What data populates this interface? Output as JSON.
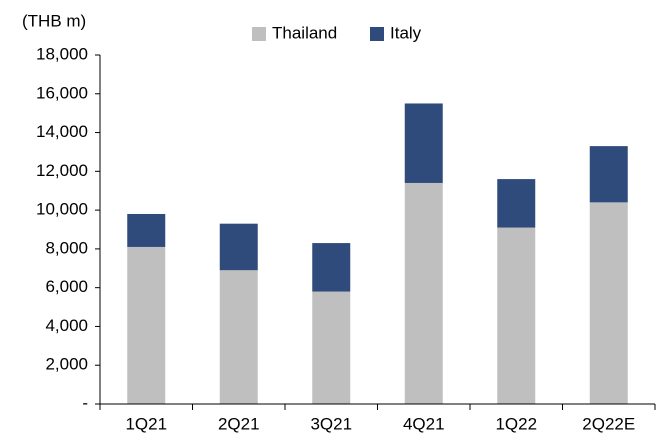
{
  "chart_data": {
    "type": "stacked_bar",
    "y_unit_label": "(THB m)",
    "categories": [
      "1Q21",
      "2Q21",
      "3Q21",
      "4Q21",
      "1Q22",
      "2Q22E"
    ],
    "series": [
      {
        "name": "Thailand",
        "color": "#bfbfbf",
        "values": [
          8100,
          6900,
          5800,
          11400,
          9100,
          10400
        ]
      },
      {
        "name": "Italy",
        "color": "#2f4b7c",
        "values": [
          1700,
          2400,
          2500,
          4100,
          2500,
          2900
        ]
      }
    ],
    "ylim": [
      0,
      18000
    ],
    "yticks": [
      {
        "value": 0,
        "label": "-"
      },
      {
        "value": 2000,
        "label": "2,000"
      },
      {
        "value": 4000,
        "label": "4,000"
      },
      {
        "value": 6000,
        "label": "6,000"
      },
      {
        "value": 8000,
        "label": "8,000"
      },
      {
        "value": 10000,
        "label": "10,000"
      },
      {
        "value": 12000,
        "label": "12,000"
      },
      {
        "value": 14000,
        "label": "14,000"
      },
      {
        "value": 16000,
        "label": "16,000"
      },
      {
        "value": 18000,
        "label": "18,000"
      }
    ],
    "legend": "top"
  }
}
